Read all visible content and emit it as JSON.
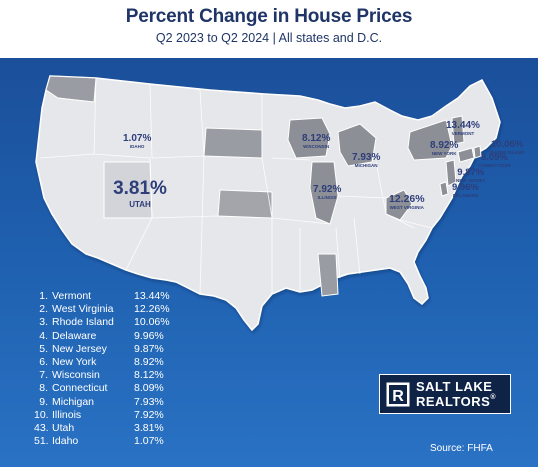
{
  "header": {
    "title": "Percent Change in House Prices",
    "subtitle": "Q2 2023 to Q2 2024 | All states and D.C."
  },
  "map_labels": [
    {
      "value": "1.07%",
      "state": "IDAHO"
    },
    {
      "value": "3.81%",
      "state": "UTAH"
    },
    {
      "value": "8.12%",
      "state": "WISCONSIN"
    },
    {
      "value": "7.93%",
      "state": "MICHIGAN"
    },
    {
      "value": "7.92%",
      "state": "ILLINOIS"
    },
    {
      "value": "12.26%",
      "state": "WEST VIRGINIA"
    },
    {
      "value": "13.44%",
      "state": "VERMONT"
    },
    {
      "value": "8.92%",
      "state": "NEW YORK"
    },
    {
      "value": "10.06%",
      "state": "RHODE ISLAND"
    },
    {
      "value": "8.09%",
      "state": "CONNECTICUT"
    },
    {
      "value": "9.87%",
      "state": "NEW JERSEY"
    },
    {
      "value": "9.96%",
      "state": "DELAWARE"
    }
  ],
  "ranking": [
    {
      "rank": "1.",
      "state": "Vermont",
      "value": "13.44%"
    },
    {
      "rank": "2.",
      "state": "West Virginia",
      "value": "12.26%"
    },
    {
      "rank": "3.",
      "state": "Rhode Island",
      "value": "10.06%"
    },
    {
      "rank": "4.",
      "state": "Delaware",
      "value": "9.96%"
    },
    {
      "rank": "5.",
      "state": "New Jersey",
      "value": "9.87%"
    },
    {
      "rank": "6.",
      "state": "New York",
      "value": "8.92%"
    },
    {
      "rank": "7.",
      "state": "Wisconsin",
      "value": "8.12%"
    },
    {
      "rank": "8.",
      "state": "Connecticut",
      "value": "8.09%"
    },
    {
      "rank": "9.",
      "state": "Michigan",
      "value": "7.93%"
    },
    {
      "rank": "10.",
      "state": "Illinois",
      "value": "7.92%"
    },
    {
      "rank": "43.",
      "state": "Utah",
      "value": "3.81%"
    },
    {
      "rank": "51.",
      "state": "Idaho",
      "value": "1.07%"
    }
  ],
  "logo": {
    "line1": "SALT LAKE",
    "line2": "REALTORS",
    "mark": "R",
    "registered": "®"
  },
  "source": "Source: FHFA",
  "colors": {
    "title": "#1f3567",
    "panel": "#1e5fae",
    "label": "#2d3e7a",
    "highlight_state": "#8d8f96",
    "state_fill": "#e3e4e8"
  }
}
